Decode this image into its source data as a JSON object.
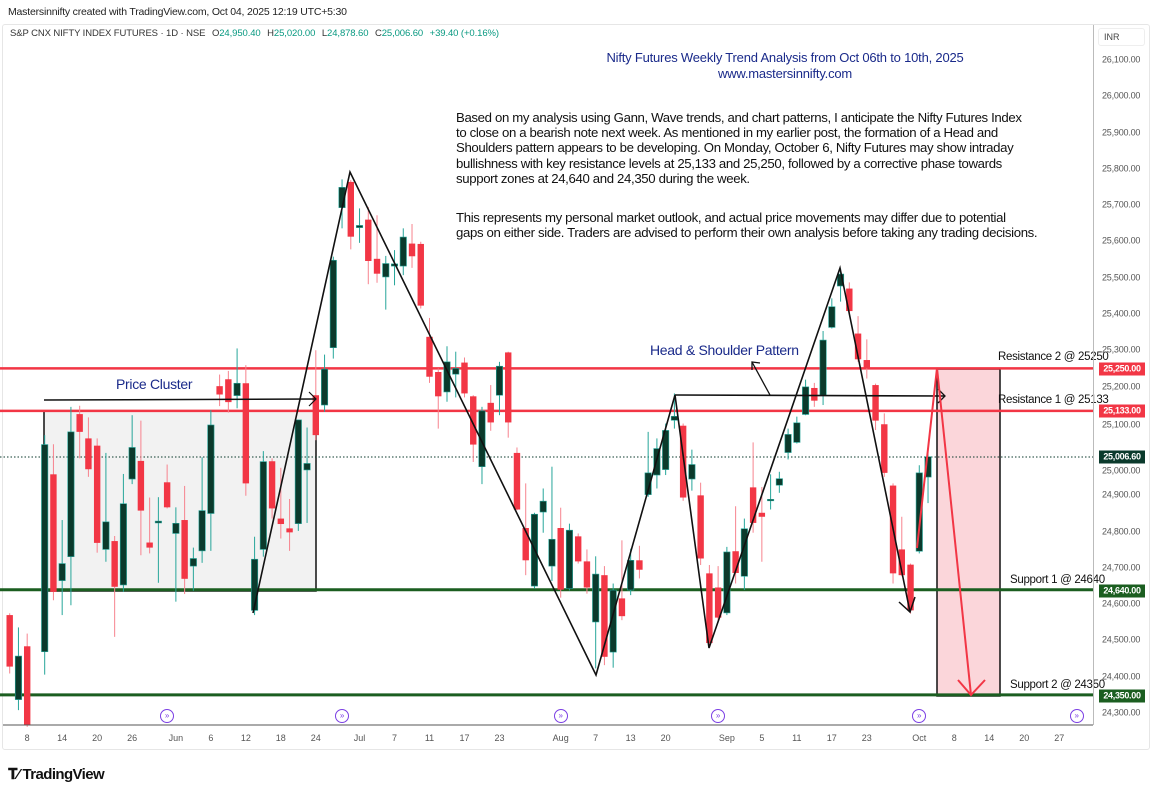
{
  "credit": "Mastersinnifty created with TradingView.com, Oct 04, 2025 12:19 UTC+5:30",
  "legend": {
    "symbol": "S&P CNX NIFTY INDEX FUTURES · 1D · NSE",
    "o_key": "O",
    "o": "24,950.40",
    "h_key": "H",
    "h": "25,020.00",
    "l_key": "L",
    "l": "24,878.60",
    "c_key": "C",
    "c": "25,006.60",
    "change": "+39.40 (+0.16%)"
  },
  "title": {
    "line1": "Nifty Futures Weekly Trend Analysis from Oct 06th to 10th, 2025",
    "line2": "www.mastersinnifty.com"
  },
  "paragraph1": [
    "Based on my analysis using Gann, Wave trends, and chart patterns, I anticipate the Nifty Futures Index",
    "to close on a bearish note next week. As mentioned in my earlier post, the formation of a Head and",
    "Shoulders pattern appears to be developing. On Monday, October 6, Nifty Futures may show intraday",
    "bullishness with key resistance levels at 25,133 and 25,250, followed by a corrective phase towards",
    "support zones at 24,640 and 24,350 during the week."
  ],
  "paragraph2": [
    "This represents my personal market outlook, and actual price movements may differ due to potential",
    "gaps on either side. Traders are advised to perform their own analysis before taking any trading decisions."
  ],
  "annotations": {
    "price_cluster": "Price Cluster",
    "head_shoulder": "Head & Shoulder Pattern",
    "resistance2": "Resistance 2 @ 25250",
    "resistance1": "Resistance 1 @ 25133",
    "support1": "Support 1 @ 24640",
    "support2": "Support 2 @ 24350"
  },
  "currency": "INR",
  "price_labels": {
    "r2": "25,250.00",
    "r1": "25,133.00",
    "last": "25,006.60",
    "s1": "24,640.00",
    "s2": "24,350.00"
  },
  "colors": {
    "up_body": "#0b3a2c",
    "up_wick": "#26a69a",
    "down": "#f23645",
    "support": "#1b5e20",
    "last": "#0b3a2c",
    "event": "#7b3fe4"
  },
  "logo": "TradingView",
  "chart_data": {
    "type": "candlestick",
    "title": "S&P CNX NIFTY INDEX FUTURES · 1D · NSE",
    "ylabel": "INR",
    "ylim": [
      24270,
      26130
    ],
    "yticks": [
      "24,300.00",
      "24,400.00",
      "24,500.00",
      "24,600.00",
      "24,700.00",
      "24,800.00",
      "24,900.00",
      "25,000.00",
      "25,100.00",
      "25,200.00",
      "25,300.00",
      "25,400.00",
      "25,500.00",
      "25,600.00",
      "25,700.00",
      "25,800.00",
      "25,900.00",
      "26,000.00",
      "26,100.00"
    ],
    "ytick_values": [
      24300,
      24400,
      24500,
      24600,
      24700,
      24800,
      24900,
      25000,
      25100,
      25200,
      25300,
      25400,
      25500,
      25600,
      25700,
      25800,
      25900,
      26000,
      26100
    ],
    "xticks": [
      {
        "label": "8",
        "i": 2
      },
      {
        "label": "14",
        "i": 6
      },
      {
        "label": "20",
        "i": 10
      },
      {
        "label": "26",
        "i": 14
      },
      {
        "label": "Jun",
        "i": 19
      },
      {
        "label": "6",
        "i": 23
      },
      {
        "label": "12",
        "i": 27
      },
      {
        "label": "18",
        "i": 31
      },
      {
        "label": "24",
        "i": 35
      },
      {
        "label": "Jul",
        "i": 40
      },
      {
        "label": "7",
        "i": 44
      },
      {
        "label": "11",
        "i": 48
      },
      {
        "label": "17",
        "i": 52
      },
      {
        "label": "23",
        "i": 56
      },
      {
        "label": "Aug",
        "i": 63
      },
      {
        "label": "7",
        "i": 67
      },
      {
        "label": "13",
        "i": 71
      },
      {
        "label": "20",
        "i": 75
      },
      {
        "label": "Sep",
        "i": 82
      },
      {
        "label": "5",
        "i": 86
      },
      {
        "label": "11",
        "i": 90
      },
      {
        "label": "17",
        "i": 94
      },
      {
        "label": "23",
        "i": 98
      },
      {
        "label": "Oct",
        "i": 104
      },
      {
        "label": "8",
        "i": 108
      },
      {
        "label": "14",
        "i": 112
      },
      {
        "label": "20",
        "i": 116
      },
      {
        "label": "27",
        "i": 120
      }
    ],
    "levels": {
      "resistance2": 25250,
      "resistance1": 25133,
      "last": 25006.6,
      "support1": 24640,
      "support2": 24350
    },
    "candle_fields": [
      "i",
      "open",
      "high",
      "low",
      "close"
    ],
    "candles": [
      [
        0,
        24570,
        24575,
        24409,
        24428
      ],
      [
        1,
        24337,
        24536,
        24308,
        24457
      ],
      [
        2,
        24484,
        24519,
        24262,
        24267
      ],
      [
        4,
        24469,
        25066,
        24406,
        25040
      ],
      [
        5,
        24958,
        25041,
        24611,
        24634
      ],
      [
        6,
        24665,
        24832,
        24570,
        24712
      ],
      [
        7,
        24731,
        25144,
        24597,
        25075
      ],
      [
        8,
        25124,
        25147,
        25002,
        25075
      ],
      [
        9,
        25057,
        25115,
        24951,
        24972
      ],
      [
        10,
        25037,
        25057,
        24742,
        24769
      ],
      [
        11,
        24751,
        25017,
        24717,
        24827
      ],
      [
        12,
        24774,
        24788,
        24510,
        24648
      ],
      [
        13,
        24653,
        24959,
        24634,
        24877
      ],
      [
        14,
        24945,
        25121,
        24931,
        25032
      ],
      [
        15,
        24995,
        25106,
        24735,
        24858
      ],
      [
        16,
        24770,
        24894,
        24740,
        24756
      ],
      [
        17,
        24824,
        24895,
        24659,
        24829
      ],
      [
        18,
        24936,
        24985,
        24864,
        24867
      ],
      [
        19,
        24795,
        24867,
        24607,
        24823
      ],
      [
        20,
        24832,
        24926,
        24628,
        24670
      ],
      [
        21,
        24705,
        24756,
        24637,
        24726
      ],
      [
        22,
        24747,
        25005,
        24714,
        24858
      ],
      [
        23,
        24850,
        25135,
        24747,
        25094
      ],
      [
        24,
        25201,
        25233,
        25146,
        25178
      ],
      [
        25,
        25220,
        25243,
        25128,
        25157
      ],
      [
        26,
        25175,
        25305,
        25140,
        25209
      ],
      [
        27,
        25209,
        25259,
        24899,
        24933
      ],
      [
        28,
        24583,
        24786,
        24570,
        24724
      ],
      [
        29,
        24751,
        25022,
        24731,
        24993
      ],
      [
        30,
        24994,
        25002,
        24836,
        24864
      ],
      [
        31,
        24836,
        24976,
        24781,
        24821
      ],
      [
        32,
        24809,
        24890,
        24747,
        24798
      ],
      [
        33,
        24822,
        25108,
        24802,
        25108
      ],
      [
        34,
        24970,
        25087,
        24824,
        24988
      ],
      [
        35,
        25176,
        25300,
        25052,
        25066
      ],
      [
        36,
        25149,
        25288,
        25130,
        25248
      ],
      [
        37,
        25307,
        25558,
        25277,
        25548
      ],
      [
        38,
        25693,
        25771,
        25636,
        25749
      ],
      [
        39,
        25764,
        25769,
        25578,
        25613
      ],
      [
        40,
        25638,
        25691,
        25596,
        25644
      ],
      [
        41,
        25660,
        25695,
        25482,
        25546
      ],
      [
        42,
        25552,
        25672,
        25486,
        25511
      ],
      [
        43,
        25502,
        25560,
        25412,
        25539
      ],
      [
        44,
        25532,
        25576,
        25479,
        25538
      ],
      [
        45,
        25532,
        25636,
        25507,
        25612
      ],
      [
        46,
        25594,
        25648,
        25527,
        25559
      ],
      [
        47,
        25593,
        25599,
        25415,
        25423
      ],
      [
        48,
        25337,
        25389,
        25210,
        25227
      ],
      [
        49,
        25240,
        25250,
        25084,
        25173
      ],
      [
        50,
        25185,
        25311,
        25158,
        25268
      ],
      [
        51,
        25234,
        25296,
        25170,
        25250
      ],
      [
        52,
        25266,
        25280,
        25170,
        25181
      ],
      [
        53,
        25173,
        25176,
        24992,
        25040
      ],
      [
        54,
        24979,
        25144,
        24931,
        25133
      ],
      [
        55,
        25155,
        25204,
        25078,
        25101
      ],
      [
        56,
        25176,
        25268,
        25121,
        25256
      ],
      [
        57,
        25294,
        25296,
        25059,
        25101
      ],
      [
        58,
        25017,
        25032,
        24859,
        24861
      ],
      [
        59,
        24810,
        24933,
        24680,
        24721
      ],
      [
        60,
        24650,
        24852,
        24643,
        24848
      ],
      [
        61,
        24854,
        24919,
        24797,
        24884
      ],
      [
        62,
        24705,
        24979,
        24664,
        24779
      ],
      [
        63,
        24810,
        24866,
        24618,
        24640
      ],
      [
        64,
        24643,
        24822,
        24638,
        24804
      ],
      [
        65,
        24787,
        24795,
        24712,
        24718
      ],
      [
        66,
        24718,
        24751,
        24629,
        24646
      ],
      [
        67,
        24551,
        24732,
        24423,
        24683
      ],
      [
        68,
        24680,
        24705,
        24432,
        24455
      ],
      [
        69,
        24468,
        24657,
        24425,
        24639
      ],
      [
        70,
        24616,
        24776,
        24556,
        24567
      ],
      [
        71,
        24639,
        24753,
        24625,
        24721
      ],
      [
        72,
        24721,
        24761,
        24671,
        24695
      ],
      [
        73,
        24902,
        25075,
        24896,
        24962
      ],
      [
        74,
        24956,
        25057,
        24919,
        25029
      ],
      [
        75,
        24971,
        25098,
        24956,
        25079
      ],
      [
        76,
        25107,
        25181,
        25084,
        25118
      ],
      [
        77,
        25092,
        25098,
        24885,
        24894
      ],
      [
        78,
        24945,
        25026,
        24913,
        24985
      ],
      [
        79,
        24900,
        24935,
        24708,
        24726
      ],
      [
        80,
        24685,
        24708,
        24482,
        24493
      ],
      [
        81,
        24646,
        24705,
        24556,
        24563
      ],
      [
        82,
        24576,
        24758,
        24570,
        24744
      ],
      [
        83,
        24746,
        24870,
        24657,
        24686
      ],
      [
        84,
        24677,
        24836,
        24639,
        24808
      ],
      [
        85,
        24922,
        25046,
        24797,
        24824
      ],
      [
        86,
        24852,
        24923,
        24717,
        24841
      ],
      [
        87,
        24885,
        24958,
        24861,
        24889
      ],
      [
        88,
        24928,
        24965,
        24907,
        24946
      ],
      [
        89,
        25018,
        25084,
        24999,
        25068
      ],
      [
        90,
        25046,
        25117,
        25043,
        25100
      ],
      [
        91,
        25123,
        25219,
        25121,
        25199
      ],
      [
        92,
        25196,
        25210,
        25144,
        25161
      ],
      [
        93,
        25176,
        25353,
        25149,
        25328
      ],
      [
        94,
        25363,
        25443,
        25360,
        25420
      ],
      [
        95,
        25477,
        25525,
        25434,
        25510
      ],
      [
        96,
        25470,
        25487,
        25401,
        25408
      ],
      [
        97,
        25346,
        25394,
        25268,
        25275
      ],
      [
        98,
        25273,
        25330,
        25222,
        25250
      ],
      [
        99,
        25204,
        25208,
        25080,
        25106
      ],
      [
        100,
        25096,
        25126,
        24951,
        24962
      ],
      [
        101,
        24927,
        24933,
        24657,
        24685
      ],
      [
        102,
        24751,
        24841,
        24677,
        24680
      ],
      [
        103,
        24709,
        24712,
        24574,
        24583
      ],
      [
        104,
        24746,
        24983,
        24740,
        24962
      ],
      [
        105,
        24950.4,
        25020,
        24878.6,
        25006.6
      ]
    ],
    "event_markers_i": [
      18,
      38,
      63,
      81,
      104,
      122
    ]
  }
}
